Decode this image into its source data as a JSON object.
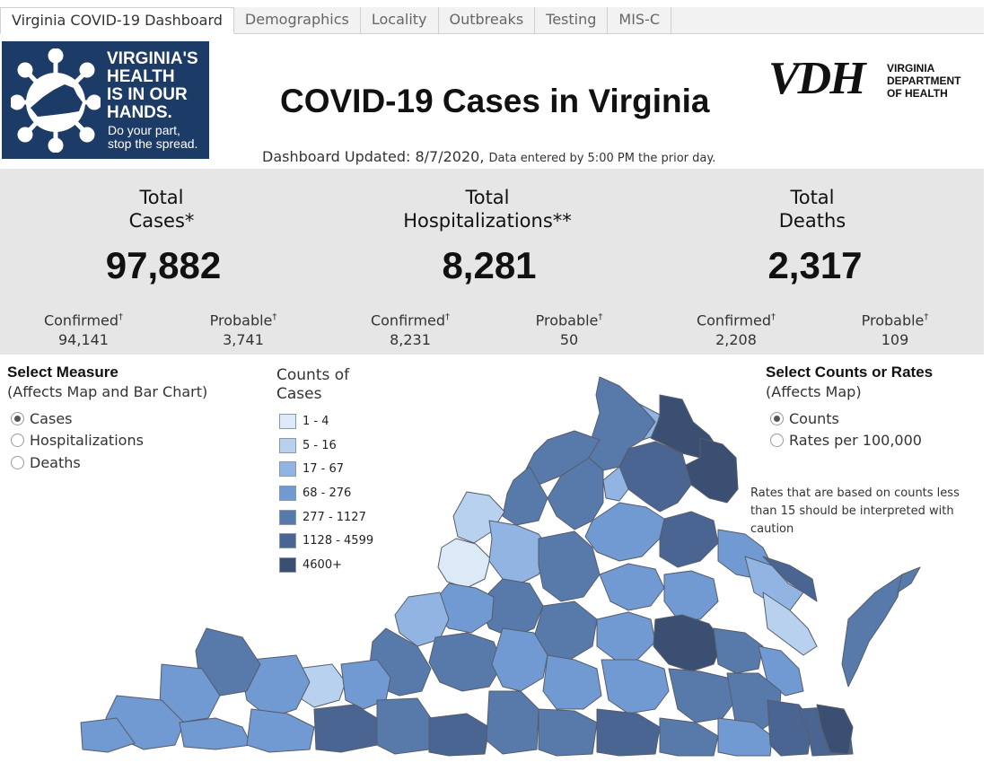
{
  "tabs": [
    {
      "label": "Virginia COVID-19 Dashboard",
      "active": true
    },
    {
      "label": "Demographics",
      "active": false
    },
    {
      "label": "Locality",
      "active": false
    },
    {
      "label": "Outbreaks",
      "active": false
    },
    {
      "label": "Testing",
      "active": false
    },
    {
      "label": "MIS-C",
      "active": false
    }
  ],
  "header": {
    "logo_left": {
      "headline": [
        "VIRGINIA'S",
        "HEALTH",
        "IS IN OUR",
        "HANDS."
      ],
      "tagline": [
        "Do your part,",
        "stop the spread."
      ]
    },
    "title": "COVID-19 Cases in Virginia",
    "vdh_logo": {
      "letters": "VDH",
      "lines": [
        "VIRGINIA",
        "DEPARTMENT",
        "OF HEALTH"
      ]
    },
    "updated": "Dashboard Updated: 8/7/2020,",
    "updated_note": "Data entered by 5:00 PM the prior day."
  },
  "stats": {
    "cases": {
      "title": [
        "Total",
        "Cases*"
      ],
      "total": "97,882",
      "confirmed_label": "Confirmed",
      "confirmed": "94,141",
      "probable_label": "Probable",
      "probable": "3,741"
    },
    "hospitalizations": {
      "title": [
        "Total",
        "Hospitalizations**"
      ],
      "total": "8,281",
      "confirmed_label": "Confirmed",
      "confirmed": "8,231",
      "probable_label": "Probable",
      "probable": "50"
    },
    "deaths": {
      "title": [
        "Total",
        "Deaths"
      ],
      "total": "2,317",
      "confirmed_label": "Confirmed",
      "confirmed": "2,208",
      "probable_label": "Probable",
      "probable": "109"
    },
    "dagger": "†"
  },
  "measure": {
    "heading": "Select Measure",
    "sub": "(Affects Map and Bar Chart)",
    "options": [
      {
        "label": "Cases",
        "selected": true
      },
      {
        "label": "Hospitalizations",
        "selected": false
      },
      {
        "label": "Deaths",
        "selected": false
      }
    ]
  },
  "counts_rates": {
    "heading": "Select Counts or Rates",
    "sub": "(Affects Map)",
    "options": [
      {
        "label": "Counts",
        "selected": true
      },
      {
        "label": "Rates per 100,000",
        "selected": false
      }
    ],
    "caution": "Rates that are based on counts less than 15 should be interpreted with caution"
  },
  "legend": {
    "title": [
      "Counts of",
      "Cases"
    ],
    "items": [
      {
        "label": "1 - 4",
        "color": "#dce9f6"
      },
      {
        "label": "5 - 16",
        "color": "#b7d1ee"
      },
      {
        "label": "17 - 67",
        "color": "#92b4e3"
      },
      {
        "label": "68 - 276",
        "color": "#7199d2"
      },
      {
        "label": "277 - 1127",
        "color": "#587aab"
      },
      {
        "label": "1128 - 4599",
        "color": "#4b6592"
      },
      {
        "label": "4600+",
        "color": "#3a4f72"
      }
    ]
  },
  "colors": {
    "logo_bg": "#1c3b66",
    "stats_bg": "#e6e6e6",
    "map_border": "#555d6b"
  }
}
